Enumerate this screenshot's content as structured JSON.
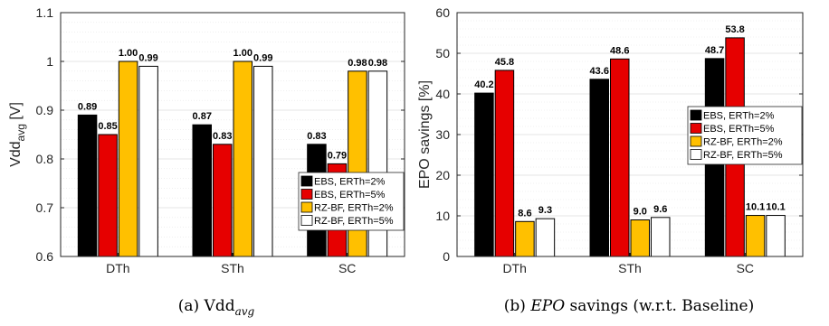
{
  "chart_data": [
    {
      "type": "bar",
      "categories": [
        "DTh",
        "STh",
        "SC"
      ],
      "series": [
        {
          "name": "EBS, ERTh=2%",
          "color": "#000000",
          "values": [
            0.89,
            0.87,
            0.83
          ]
        },
        {
          "name": "EBS, ERTh=5%",
          "color": "#e60000",
          "values": [
            0.85,
            0.83,
            0.79
          ]
        },
        {
          "name": "RZ-BF, ERTh=2%",
          "color": "#ffc000",
          "values": [
            1.0,
            1.0,
            0.98
          ]
        },
        {
          "name": "RZ-BF, ERTh=5%",
          "color": "#ffffff",
          "values": [
            0.99,
            0.99,
            0.98
          ]
        }
      ],
      "data_labels": [
        [
          "0.89",
          "0.87",
          "0.83"
        ],
        [
          "0.85",
          "0.83",
          "0.79"
        ],
        [
          "1.00",
          "1.00",
          "0.98"
        ],
        [
          "0.99",
          "0.99",
          "0.98"
        ]
      ],
      "ylabel_main": "Vdd",
      "ylabel_sub": "avg",
      "ylabel_unit": " [V]",
      "ylim": [
        0.6,
        1.1
      ],
      "yticks": [
        0.6,
        0.7,
        0.8,
        0.9,
        1.0,
        1.1
      ],
      "ytick_labels": [
        "0.6",
        "0.7",
        "0.8",
        "0.9",
        "1",
        "1.1"
      ],
      "grid": true,
      "legend_position": "bottom-right",
      "caption": {
        "prefix": "(a) Vdd",
        "sub": "avg",
        "suffix": ""
      }
    },
    {
      "type": "bar",
      "categories": [
        "DTh",
        "STh",
        "SC"
      ],
      "series": [
        {
          "name": "EBS, ERTh=2%",
          "color": "#000000",
          "values": [
            40.2,
            43.6,
            48.7
          ]
        },
        {
          "name": "EBS, ERTh=5%",
          "color": "#e60000",
          "values": [
            45.8,
            48.6,
            53.8
          ]
        },
        {
          "name": "RZ-BF, ERTh=2%",
          "color": "#ffc000",
          "values": [
            8.6,
            9.0,
            10.1
          ]
        },
        {
          "name": "RZ-BF, ERTh=5%",
          "color": "#ffffff",
          "values": [
            9.3,
            9.6,
            10.1
          ]
        }
      ],
      "data_labels": [
        [
          "40.2",
          "43.6",
          "48.7"
        ],
        [
          "45.8",
          "48.6",
          "53.8"
        ],
        [
          "8.6",
          "9.0",
          "10.1"
        ],
        [
          "9.3",
          "9.6",
          "10.1"
        ]
      ],
      "ylabel_main": "EPO savings [%]",
      "ylabel_sub": "",
      "ylabel_unit": "",
      "ylim": [
        0,
        60
      ],
      "yticks": [
        0,
        10,
        20,
        30,
        40,
        50,
        60
      ],
      "ytick_labels": [
        "0",
        "10",
        "20",
        "30",
        "40",
        "50",
        "60"
      ],
      "grid": true,
      "legend_position": "right",
      "caption": {
        "prefix": "(b) ",
        "italic": "EPO",
        "suffix": " savings (w.r.t. Baseline)"
      }
    }
  ]
}
